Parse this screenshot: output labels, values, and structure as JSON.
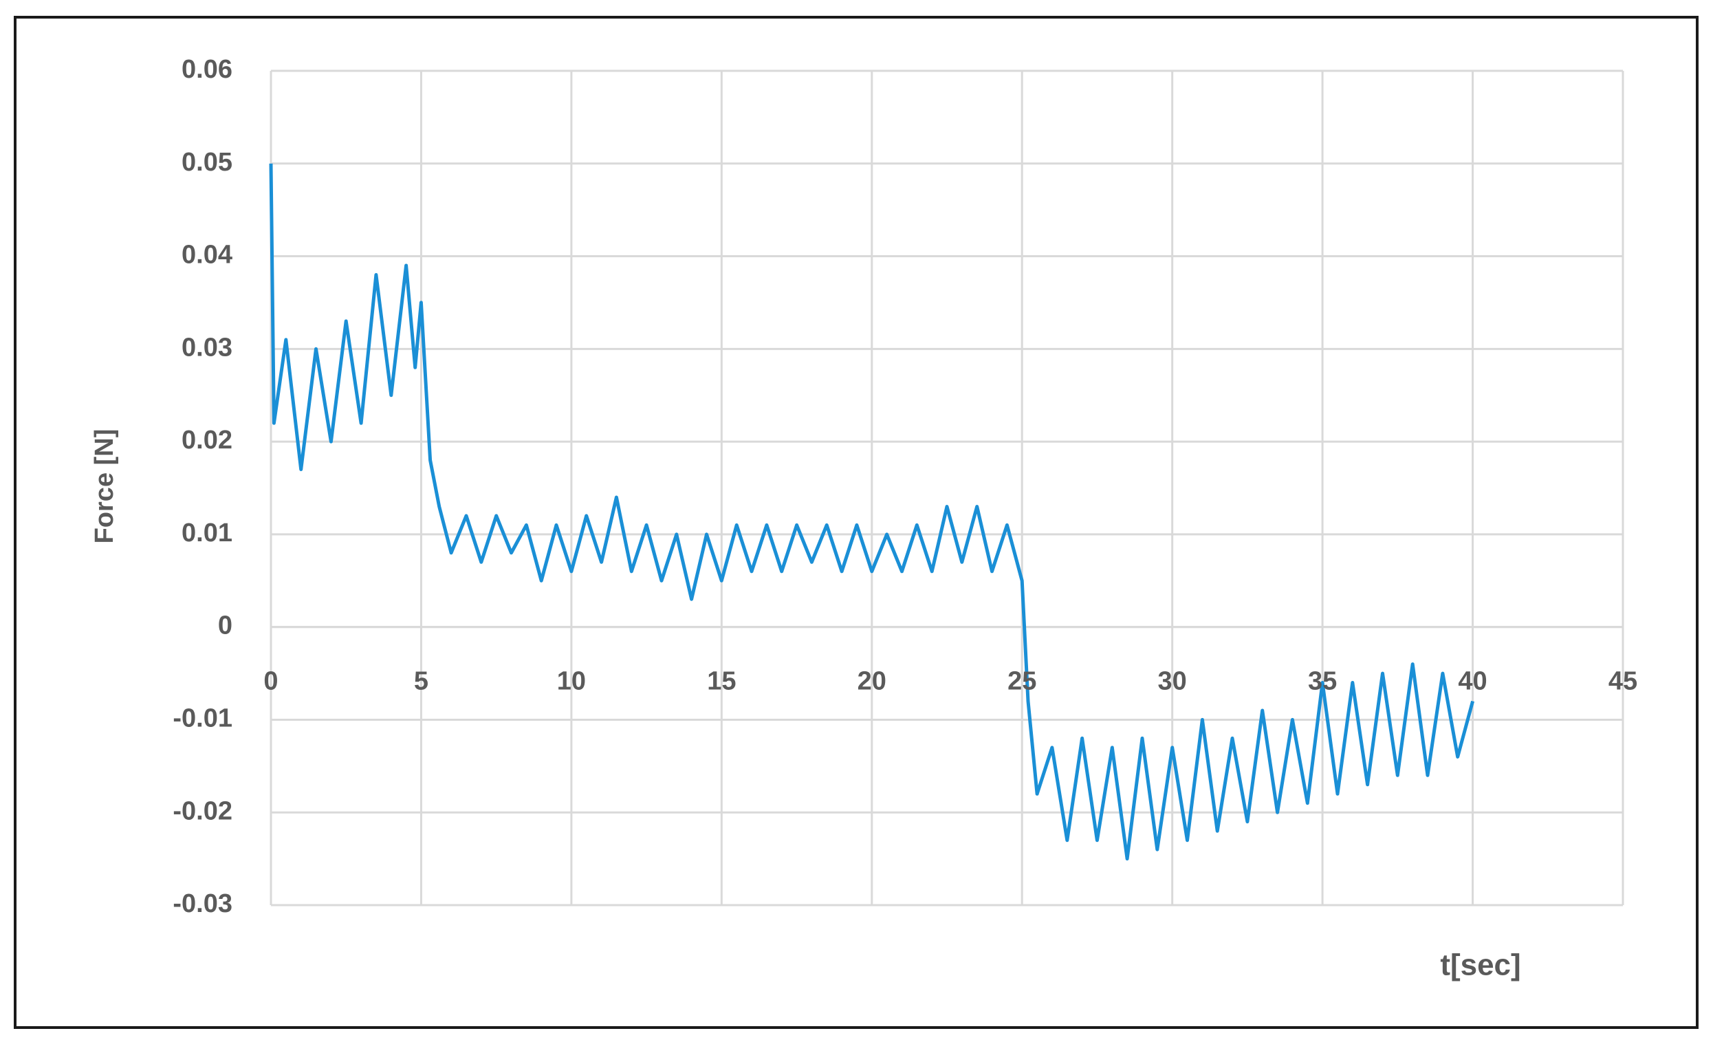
{
  "chart_data": {
    "type": "line",
    "xlabel": "t[sec]",
    "ylabel": "Force [N]",
    "x": [
      0,
      0.1,
      0.5,
      1,
      1.5,
      2,
      2.5,
      3,
      3.5,
      4,
      4.5,
      4.8,
      5,
      5.3,
      5.6,
      6,
      6.5,
      7,
      7.5,
      8,
      8.5,
      9,
      9.5,
      10,
      10.5,
      11,
      11.5,
      12,
      12.5,
      13,
      13.5,
      14,
      14.5,
      15,
      15.5,
      16,
      16.5,
      17,
      17.5,
      18,
      18.5,
      19,
      19.5,
      20,
      20.5,
      21,
      21.5,
      22,
      22.5,
      23,
      23.5,
      24,
      24.5,
      25,
      25.2,
      25.5,
      26,
      26.5,
      27,
      27.5,
      28,
      28.5,
      29,
      29.5,
      30,
      30.5,
      31,
      31.5,
      32,
      32.5,
      33,
      33.5,
      34,
      34.5,
      35,
      35.5,
      36,
      36.5,
      37,
      37.5,
      38,
      38.5,
      39,
      39.5,
      40
    ],
    "series": [
      {
        "name": "Force",
        "color": "#1a8fd6",
        "values": [
          0.05,
          0.022,
          0.031,
          0.017,
          0.03,
          0.02,
          0.033,
          0.022,
          0.038,
          0.025,
          0.039,
          0.028,
          0.035,
          0.018,
          0.013,
          0.008,
          0.012,
          0.007,
          0.012,
          0.008,
          0.011,
          0.005,
          0.011,
          0.006,
          0.012,
          0.007,
          0.014,
          0.006,
          0.011,
          0.005,
          0.01,
          0.003,
          0.01,
          0.005,
          0.011,
          0.006,
          0.011,
          0.006,
          0.011,
          0.007,
          0.011,
          0.006,
          0.011,
          0.006,
          0.01,
          0.006,
          0.011,
          0.006,
          0.013,
          0.007,
          0.013,
          0.006,
          0.011,
          0.005,
          -0.008,
          -0.018,
          -0.013,
          -0.023,
          -0.012,
          -0.023,
          -0.013,
          -0.025,
          -0.012,
          -0.024,
          -0.013,
          -0.023,
          -0.01,
          -0.022,
          -0.012,
          -0.021,
          -0.009,
          -0.02,
          -0.01,
          -0.019,
          -0.006,
          -0.018,
          -0.006,
          -0.017,
          -0.005,
          -0.016,
          -0.004,
          -0.016,
          -0.005,
          -0.014,
          -0.008
        ]
      }
    ],
    "xlim": [
      0,
      45
    ],
    "xticks": [
      0,
      5,
      10,
      15,
      20,
      25,
      30,
      35,
      40,
      45
    ],
    "ylim": [
      -0.03,
      0.06
    ],
    "yticks": [
      -0.03,
      -0.02,
      -0.01,
      0,
      0.01,
      0.02,
      0.03,
      0.04,
      0.05,
      0.06
    ],
    "grid": true
  }
}
